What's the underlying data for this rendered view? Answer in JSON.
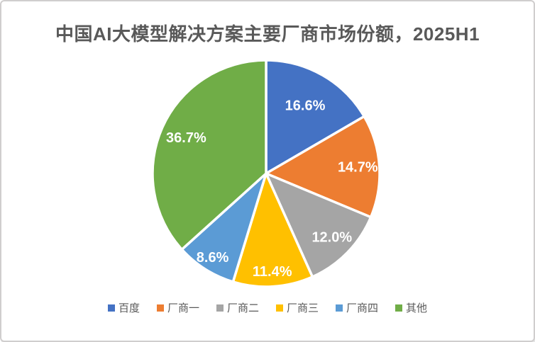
{
  "window": {
    "background_color": "#FFFFFF",
    "frame_border_color": "#D0CECE"
  },
  "chart_data": {
    "type": "pie",
    "title": "中国AI大模型解决方案主要厂商市场份额，2025H1",
    "title_color": "#595959",
    "categories": [
      "百度",
      "厂商一",
      "厂商二",
      "厂商三",
      "厂商四",
      "其他"
    ],
    "values": [
      16.6,
      14.7,
      12.0,
      11.4,
      8.6,
      36.7
    ],
    "slice_labels": [
      "16.6%",
      "14.7%",
      "12.0%",
      "11.4%",
      "8.6%",
      "36.7%"
    ],
    "colors": [
      "#4472C4",
      "#ED7D31",
      "#A5A5A5",
      "#FFC000",
      "#5B9BD5",
      "#70AD47"
    ],
    "slice_label_color": "#FFFFFF",
    "slice_separator_color": "#FFFFFF",
    "start_angle_deg": 0,
    "direction": "clockwise",
    "label_radius_fraction": [
      0.69,
      0.81,
      0.81,
      0.87,
      0.88,
      0.77
    ],
    "legend_position": "bottom",
    "legend_text_color": "#595959"
  }
}
